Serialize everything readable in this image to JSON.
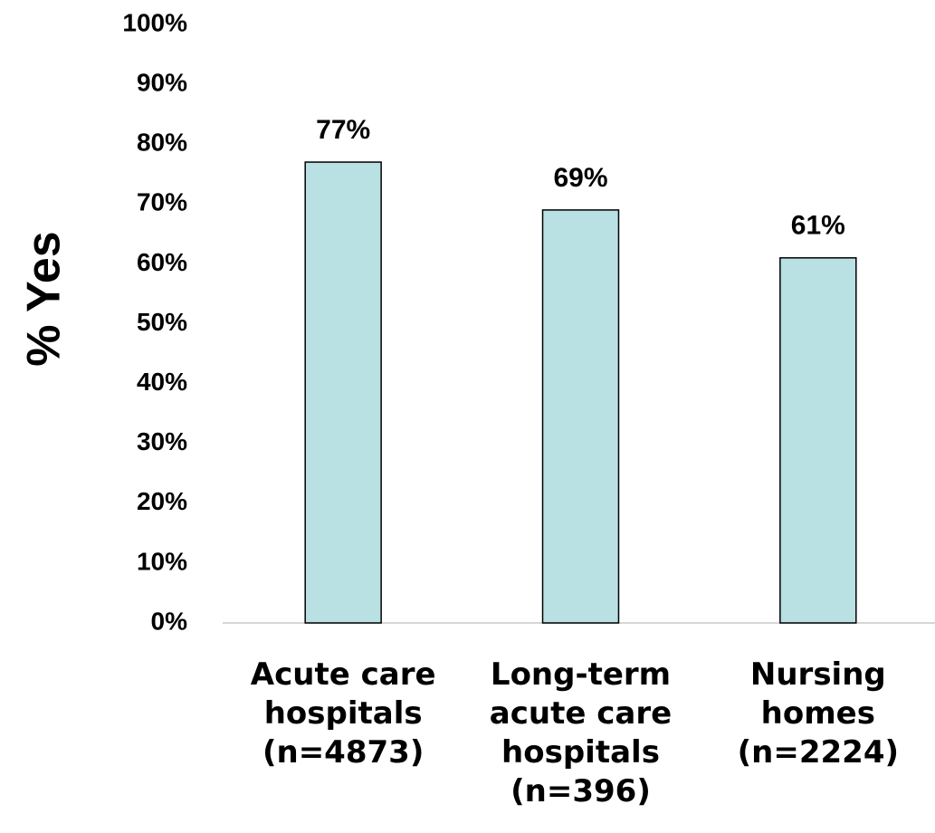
{
  "chart_data": {
    "type": "bar",
    "y_label": "% Yes",
    "categories": [
      "Acute care hospitals (n=4873)",
      "Long-term acute care hospitals (n=396)",
      "Nursing homes (n=2224)"
    ],
    "values": [
      77,
      69,
      61
    ],
    "value_labels": [
      "77%",
      "69%",
      "61%"
    ],
    "color": "#b9e0e3",
    "ylim": [
      0,
      100
    ],
    "yticks": [
      {
        "value": 0,
        "label": "0%"
      },
      {
        "value": 10,
        "label": "10%"
      },
      {
        "value": 20,
        "label": "20%"
      },
      {
        "value": 30,
        "label": "30%"
      },
      {
        "value": 40,
        "label": "40%"
      },
      {
        "value": 50,
        "label": "50%"
      },
      {
        "value": 60,
        "label": "60%"
      },
      {
        "value": 70,
        "label": "70%"
      },
      {
        "value": 80,
        "label": "80%"
      },
      {
        "value": 90,
        "label": "90%"
      },
      {
        "value": 100,
        "label": "100%"
      }
    ],
    "grid": false
  }
}
